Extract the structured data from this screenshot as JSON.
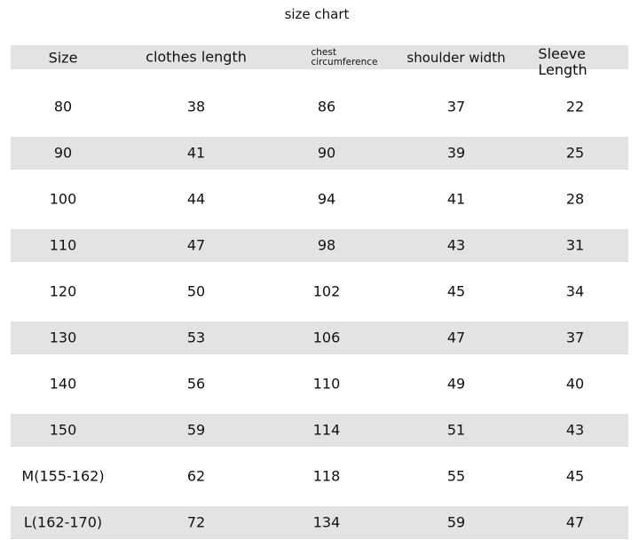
{
  "title": "size chart",
  "columns": [
    "Size",
    "clothes length",
    "chest circumference",
    "shoulder width",
    "Sleeve Length"
  ],
  "header_lines": {
    "chest": [
      "chest",
      "circumference"
    ],
    "sleeve": [
      "Sleeve",
      "Length"
    ]
  },
  "rows": [
    [
      "80",
      "38",
      "86",
      "37",
      "22"
    ],
    [
      "90",
      "41",
      "90",
      "39",
      "25"
    ],
    [
      "100",
      "44",
      "94",
      "41",
      "28"
    ],
    [
      "110",
      "47",
      "98",
      "43",
      "31"
    ],
    [
      "120",
      "50",
      "102",
      "45",
      "34"
    ],
    [
      "130",
      "53",
      "106",
      "47",
      "37"
    ],
    [
      "140",
      "56",
      "110",
      "49",
      "40"
    ],
    [
      "150",
      "59",
      "114",
      "51",
      "43"
    ],
    [
      "M(155-162)",
      "62",
      "118",
      "55",
      "45"
    ],
    [
      "L(162-170)",
      "72",
      "134",
      "59",
      "47"
    ]
  ],
  "colors": {
    "band": "#e3e3e3",
    "text": "#111111"
  }
}
